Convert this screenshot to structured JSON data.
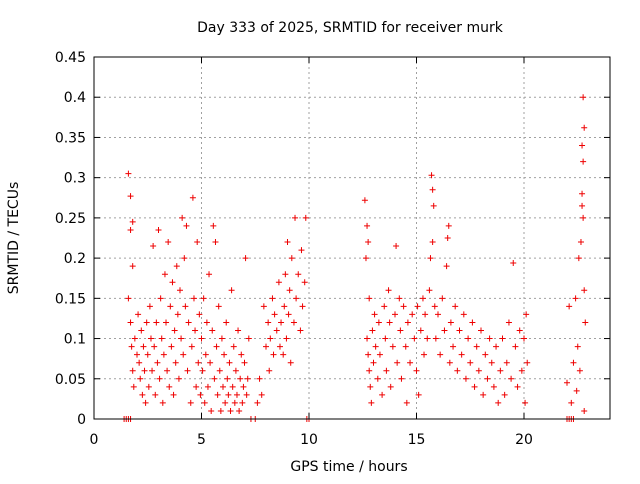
{
  "chart_data": {
    "type": "scatter",
    "title": "Day 333 of 2025, SRMTID for receiver murk",
    "xlabel": "GPS time / hours",
    "ylabel": "SRMTID / TECUs",
    "xlim": [
      0,
      24
    ],
    "ylim": [
      0,
      0.45
    ],
    "grid": true,
    "marker": "+",
    "color": "#ee0000",
    "xticks": [
      0,
      5,
      10,
      15,
      20
    ],
    "xtick_labels": [
      "0",
      "5",
      "10",
      "15",
      "20"
    ],
    "yticks": [
      0,
      0.05,
      0.1,
      0.15,
      0.2,
      0.25,
      0.3,
      0.35,
      0.4,
      0.45
    ],
    "ytick_labels": [
      "0",
      "0.05",
      "0.1",
      "0.15",
      "0.2",
      "0.25",
      "0.3",
      "0.35",
      "0.4",
      "0.45"
    ],
    "series": [
      {
        "name": "SRMTID",
        "points": [
          [
            1.4,
            0
          ],
          [
            1.5,
            0
          ],
          [
            1.6,
            0
          ],
          [
            1.7,
            0
          ],
          [
            1.6,
            0.305
          ],
          [
            1.7,
            0.277
          ],
          [
            1.8,
            0.245
          ],
          [
            1.7,
            0.235
          ],
          [
            1.8,
            0.19
          ],
          [
            1.6,
            0.15
          ],
          [
            1.7,
            0.12
          ],
          [
            1.75,
            0.09
          ],
          [
            1.8,
            0.06
          ],
          [
            1.85,
            0.04
          ],
          [
            1.9,
            0.1
          ],
          [
            2.0,
            0.08
          ],
          [
            2.05,
            0.13
          ],
          [
            2.1,
            0.07
          ],
          [
            2.15,
            0.05
          ],
          [
            2.2,
            0.11
          ],
          [
            2.25,
            0.03
          ],
          [
            2.3,
            0.09
          ],
          [
            2.35,
            0.06
          ],
          [
            2.4,
            0.02
          ],
          [
            2.45,
            0.12
          ],
          [
            2.5,
            0.08
          ],
          [
            2.55,
            0.04
          ],
          [
            2.6,
            0.14
          ],
          [
            2.65,
            0.1
          ],
          [
            2.7,
            0.06
          ],
          [
            2.75,
            0.215
          ],
          [
            2.8,
            0.09
          ],
          [
            2.85,
            0.03
          ],
          [
            2.9,
            0.12
          ],
          [
            2.95,
            0.07
          ],
          [
            3.0,
            0.235
          ],
          [
            3.05,
            0.05
          ],
          [
            3.1,
            0.15
          ],
          [
            3.15,
            0.1
          ],
          [
            3.2,
            0.02
          ],
          [
            3.25,
            0.08
          ],
          [
            3.3,
            0.18
          ],
          [
            3.35,
            0.12
          ],
          [
            3.4,
            0.06
          ],
          [
            3.45,
            0.22
          ],
          [
            3.5,
            0.04
          ],
          [
            3.55,
            0.14
          ],
          [
            3.6,
            0.09
          ],
          [
            3.65,
            0.17
          ],
          [
            3.7,
            0.03
          ],
          [
            3.75,
            0.11
          ],
          [
            3.8,
            0.07
          ],
          [
            3.85,
            0.19
          ],
          [
            3.9,
            0.13
          ],
          [
            3.95,
            0.05
          ],
          [
            4.0,
            0.16
          ],
          [
            4.05,
            0.1
          ],
          [
            4.1,
            0.25
          ],
          [
            4.15,
            0.08
          ],
          [
            4.2,
            0.2
          ],
          [
            4.25,
            0.14
          ],
          [
            4.3,
            0.24
          ],
          [
            4.35,
            0.06
          ],
          [
            4.4,
            0.12
          ],
          [
            4.5,
            0.02
          ],
          [
            4.55,
            0.09
          ],
          [
            4.6,
            0.275
          ],
          [
            4.65,
            0.15
          ],
          [
            4.7,
            0.11
          ],
          [
            4.75,
            0.04
          ],
          [
            4.8,
            0.22
          ],
          [
            4.85,
            0.07
          ],
          [
            4.9,
            0.13
          ],
          [
            4.95,
            0.03
          ],
          [
            5.0,
            0.1
          ],
          [
            5.05,
            0.06
          ],
          [
            5.1,
            0.15
          ],
          [
            5.15,
            0.02
          ],
          [
            5.2,
            0.08
          ],
          [
            5.25,
            0.12
          ],
          [
            5.3,
            0.04
          ],
          [
            5.35,
            0.18
          ],
          [
            5.4,
            0.07
          ],
          [
            5.45,
            0.01
          ],
          [
            5.5,
            0.11
          ],
          [
            5.55,
            0.24
          ],
          [
            5.6,
            0.05
          ],
          [
            5.65,
            0.22
          ],
          [
            5.7,
            0.09
          ],
          [
            5.75,
            0.03
          ],
          [
            5.8,
            0.14
          ],
          [
            5.85,
            0.06
          ],
          [
            5.9,
            0.01
          ],
          [
            5.95,
            0.1
          ],
          [
            6.0,
            0.04
          ],
          [
            6.05,
            0.08
          ],
          [
            6.1,
            0.02
          ],
          [
            6.15,
            0.12
          ],
          [
            6.2,
            0.05
          ],
          [
            6.25,
            0.03
          ],
          [
            6.3,
            0.07
          ],
          [
            6.35,
            0.01
          ],
          [
            6.4,
            0.16
          ],
          [
            6.45,
            0.04
          ],
          [
            6.5,
            0.09
          ],
          [
            6.55,
            0.02
          ],
          [
            6.6,
            0.06
          ],
          [
            6.65,
            0.03
          ],
          [
            6.7,
            0.11
          ],
          [
            6.75,
            0.01
          ],
          [
            6.8,
            0.05
          ],
          [
            6.85,
            0.08
          ],
          [
            6.9,
            0.02
          ],
          [
            6.95,
            0.04
          ],
          [
            7.0,
            0.07
          ],
          [
            7.05,
            0.2
          ],
          [
            7.1,
            0.03
          ],
          [
            7.15,
            0.05
          ],
          [
            7.2,
            0.1
          ],
          [
            7.3,
            0.0
          ],
          [
            7.5,
            0.0
          ],
          [
            7.6,
            0.02
          ],
          [
            7.7,
            0.05
          ],
          [
            7.8,
            0.03
          ],
          [
            7.9,
            0.14
          ],
          [
            8.0,
            0.09
          ],
          [
            8.1,
            0.12
          ],
          [
            8.15,
            0.06
          ],
          [
            8.2,
            0.1
          ],
          [
            8.3,
            0.15
          ],
          [
            8.35,
            0.08
          ],
          [
            8.4,
            0.13
          ],
          [
            8.5,
            0.11
          ],
          [
            8.6,
            0.17
          ],
          [
            8.65,
            0.09
          ],
          [
            8.7,
            0.12
          ],
          [
            8.8,
            0.08
          ],
          [
            8.85,
            0.14
          ],
          [
            8.9,
            0.18
          ],
          [
            8.95,
            0.1
          ],
          [
            9.0,
            0.22
          ],
          [
            9.05,
            0.13
          ],
          [
            9.1,
            0.16
          ],
          [
            9.15,
            0.07
          ],
          [
            9.2,
            0.2
          ],
          [
            9.3,
            0.12
          ],
          [
            9.35,
            0.25
          ],
          [
            9.4,
            0.15
          ],
          [
            9.5,
            0.18
          ],
          [
            9.6,
            0.11
          ],
          [
            9.65,
            0.21
          ],
          [
            9.7,
            0.14
          ],
          [
            9.8,
            0.17
          ],
          [
            9.85,
            0.25
          ],
          [
            9.9,
            0.0
          ],
          [
            10.0,
            0.0
          ],
          [
            12.6,
            0.272
          ],
          [
            12.7,
            0.24
          ],
          [
            12.65,
            0.2
          ],
          [
            12.75,
            0.22
          ],
          [
            12.8,
            0.15
          ],
          [
            12.7,
            0.1
          ],
          [
            12.75,
            0.08
          ],
          [
            12.8,
            0.06
          ],
          [
            12.85,
            0.04
          ],
          [
            12.9,
            0.02
          ],
          [
            12.95,
            0.11
          ],
          [
            13.0,
            0.07
          ],
          [
            13.05,
            0.13
          ],
          [
            13.1,
            0.09
          ],
          [
            13.2,
            0.05
          ],
          [
            13.25,
            0.12
          ],
          [
            13.3,
            0.08
          ],
          [
            13.4,
            0.03
          ],
          [
            13.5,
            0.14
          ],
          [
            13.55,
            0.1
          ],
          [
            13.6,
            0.06
          ],
          [
            13.7,
            0.16
          ],
          [
            13.75,
            0.12
          ],
          [
            13.8,
            0.04
          ],
          [
            13.9,
            0.09
          ],
          [
            14.0,
            0.13
          ],
          [
            14.05,
            0.215
          ],
          [
            14.1,
            0.07
          ],
          [
            14.2,
            0.15
          ],
          [
            14.25,
            0.11
          ],
          [
            14.3,
            0.05
          ],
          [
            14.4,
            0.14
          ],
          [
            14.5,
            0.09
          ],
          [
            14.55,
            0.02
          ],
          [
            14.6,
            0.12
          ],
          [
            14.7,
            0.07
          ],
          [
            14.8,
            0.13
          ],
          [
            14.9,
            0.1
          ],
          [
            15.0,
            0.06
          ],
          [
            15.05,
            0.14
          ],
          [
            15.1,
            0.03
          ],
          [
            15.2,
            0.11
          ],
          [
            15.3,
            0.15
          ],
          [
            15.35,
            0.08
          ],
          [
            15.4,
            0.13
          ],
          [
            15.5,
            0.1
          ],
          [
            15.6,
            0.16
          ],
          [
            15.65,
            0.2
          ],
          [
            15.7,
            0.303
          ],
          [
            15.75,
            0.285
          ],
          [
            15.8,
            0.265
          ],
          [
            15.75,
            0.22
          ],
          [
            15.85,
            0.14
          ],
          [
            15.9,
            0.1
          ],
          [
            16.0,
            0.13
          ],
          [
            16.1,
            0.08
          ],
          [
            16.2,
            0.15
          ],
          [
            16.3,
            0.11
          ],
          [
            16.4,
            0.19
          ],
          [
            16.45,
            0.225
          ],
          [
            16.5,
            0.24
          ],
          [
            16.55,
            0.07
          ],
          [
            16.6,
            0.12
          ],
          [
            16.7,
            0.09
          ],
          [
            16.8,
            0.14
          ],
          [
            16.9,
            0.06
          ],
          [
            17.0,
            0.11
          ],
          [
            17.1,
            0.08
          ],
          [
            17.2,
            0.13
          ],
          [
            17.3,
            0.05
          ],
          [
            17.4,
            0.1
          ],
          [
            17.5,
            0.07
          ],
          [
            17.6,
            0.12
          ],
          [
            17.7,
            0.04
          ],
          [
            17.8,
            0.09
          ],
          [
            17.9,
            0.06
          ],
          [
            18.0,
            0.11
          ],
          [
            18.1,
            0.03
          ],
          [
            18.2,
            0.08
          ],
          [
            18.3,
            0.05
          ],
          [
            18.4,
            0.1
          ],
          [
            18.5,
            0.07
          ],
          [
            18.6,
            0.04
          ],
          [
            18.7,
            0.09
          ],
          [
            18.8,
            0.02
          ],
          [
            18.9,
            0.06
          ],
          [
            19.0,
            0.1
          ],
          [
            19.1,
            0.03
          ],
          [
            19.2,
            0.07
          ],
          [
            19.3,
            0.12
          ],
          [
            19.4,
            0.05
          ],
          [
            19.5,
            0.194
          ],
          [
            19.6,
            0.09
          ],
          [
            19.7,
            0.04
          ],
          [
            19.8,
            0.11
          ],
          [
            19.9,
            0.06
          ],
          [
            20.0,
            0.1
          ],
          [
            20.05,
            0.02
          ],
          [
            20.1,
            0.13
          ],
          [
            20.15,
            0.07
          ],
          [
            22.0,
            0.0
          ],
          [
            22.1,
            0.0
          ],
          [
            22.2,
            0.0
          ],
          [
            22.3,
            0.0
          ],
          [
            22.0,
            0.045
          ],
          [
            22.1,
            0.14
          ],
          [
            22.2,
            0.02
          ],
          [
            22.3,
            0.07
          ],
          [
            22.4,
            0.15
          ],
          [
            22.45,
            0.035
          ],
          [
            22.5,
            0.09
          ],
          [
            22.55,
            0.2
          ],
          [
            22.6,
            0.06
          ],
          [
            22.65,
            0.22
          ],
          [
            22.7,
            0.265
          ],
          [
            22.75,
            0.25
          ],
          [
            22.7,
            0.28
          ],
          [
            22.75,
            0.32
          ],
          [
            22.7,
            0.34
          ],
          [
            22.8,
            0.362
          ],
          [
            22.75,
            0.4
          ],
          [
            22.8,
            0.16
          ],
          [
            22.85,
            0.12
          ],
          [
            22.8,
            0.01
          ]
        ]
      }
    ]
  }
}
